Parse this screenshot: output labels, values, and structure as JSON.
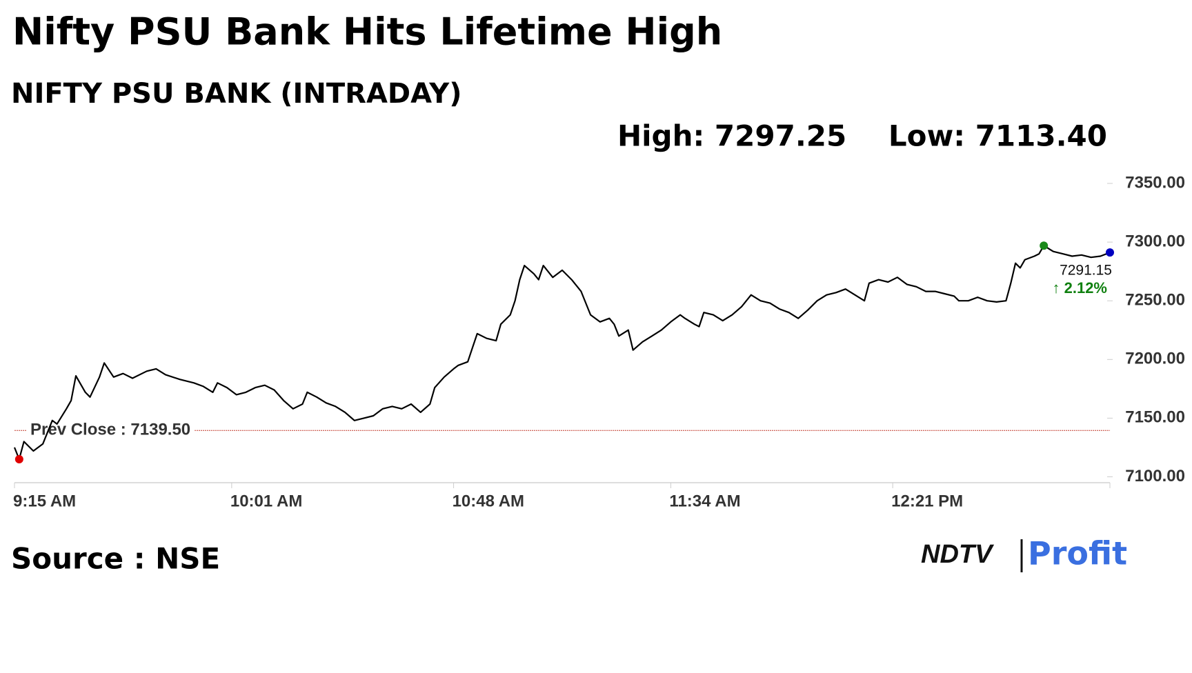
{
  "chart_data": {
    "type": "line",
    "title": "Nifty PSU Bank Hits Lifetime High",
    "subtitle": "NIFTY PSU BANK (INTRADAY)",
    "high_text": "High: 7297.25",
    "low_text": "Low: 7113.40",
    "source": "Source : NSE",
    "brand": [
      "NDTV",
      "Profit"
    ],
    "prev_close": {
      "value": 7139.5,
      "label": "Prev Close : 7139.50"
    },
    "last": {
      "value": 7291.15,
      "label": "7291.15"
    },
    "change_label": "↑ 2.12%",
    "color": "#000000",
    "xlim": [
      555,
      787
    ],
    "xticks": [
      {
        "value": 555,
        "label": "9:15 AM"
      },
      {
        "value": 601,
        "label": "10:01 AM"
      },
      {
        "value": 648,
        "label": "10:48 AM"
      },
      {
        "value": 694,
        "label": "11:34 AM"
      },
      {
        "value": 741,
        "label": "12:21 PM"
      }
    ],
    "ylim": [
      7095,
      7350
    ],
    "yticks": [
      {
        "value": 7100,
        "label": "7100.00"
      },
      {
        "value": 7150,
        "label": "7150.00"
      },
      {
        "value": 7200,
        "label": "7200.00"
      },
      {
        "value": 7250,
        "label": "7250.00"
      },
      {
        "value": 7300,
        "label": "7300.00"
      },
      {
        "value": 7350,
        "label": "7350.00"
      }
    ],
    "x": [
      555,
      556,
      557,
      559,
      561,
      563,
      564,
      566,
      567,
      568,
      570,
      571,
      573,
      574,
      576,
      578,
      580,
      583,
      585,
      587,
      590,
      593,
      595,
      597,
      598,
      600,
      602,
      604,
      606,
      608,
      610,
      612,
      614,
      616,
      617,
      619,
      621,
      623,
      625,
      627,
      629,
      631,
      633,
      635,
      637,
      639,
      641,
      643,
      644,
      646,
      648,
      649,
      651,
      652,
      653,
      655,
      657,
      658,
      660,
      661,
      662,
      663,
      665,
      666,
      667,
      669,
      671,
      673,
      675,
      677,
      679,
      681,
      682,
      683,
      685,
      686,
      688,
      690,
      692,
      694,
      696,
      697,
      699,
      700,
      701,
      703,
      705,
      707,
      709,
      711,
      713,
      715,
      717,
      719,
      721,
      723,
      725,
      727,
      729,
      731,
      733,
      735,
      736,
      738,
      740,
      742,
      744,
      746,
      748,
      750,
      752,
      754,
      755,
      757,
      759,
      761,
      763,
      765,
      766,
      767,
      768,
      769,
      771,
      772,
      773,
      775,
      777,
      779,
      781,
      783,
      785,
      787
    ],
    "values": [
      7125,
      7115,
      7130,
      7122,
      7128,
      7148,
      7145,
      7158,
      7165,
      7186,
      7172,
      7168,
      7185,
      7197,
      7185,
      7188,
      7184,
      7190,
      7192,
      7187,
      7183,
      7180,
      7177,
      7172,
      7180,
      7176,
      7170,
      7172,
      7176,
      7178,
      7174,
      7165,
      7158,
      7162,
      7172,
      7168,
      7163,
      7160,
      7155,
      7148,
      7150,
      7152,
      7158,
      7160,
      7158,
      7162,
      7155,
      7162,
      7176,
      7185,
      7192,
      7195,
      7198,
      7210,
      7222,
      7218,
      7216,
      7230,
      7238,
      7250,
      7268,
      7280,
      7273,
      7268,
      7280,
      7270,
      7276,
      7268,
      7258,
      7238,
      7232,
      7235,
      7230,
      7220,
      7225,
      7208,
      7215,
      7220,
      7225,
      7232,
      7238,
      7235,
      7230,
      7228,
      7240,
      7238,
      7233,
      7238,
      7245,
      7255,
      7250,
      7248,
      7243,
      7240,
      7235,
      7242,
      7250,
      7255,
      7257,
      7260,
      7255,
      7250,
      7265,
      7268,
      7266,
      7270,
      7264,
      7262,
      7258,
      7258,
      7256,
      7254,
      7250,
      7250,
      7253,
      7250,
      7249,
      7250,
      7265,
      7282,
      7278,
      7285,
      7288,
      7290,
      7297,
      7292,
      7290,
      7288,
      7289,
      7287,
      7288,
      7291.15
    ]
  }
}
